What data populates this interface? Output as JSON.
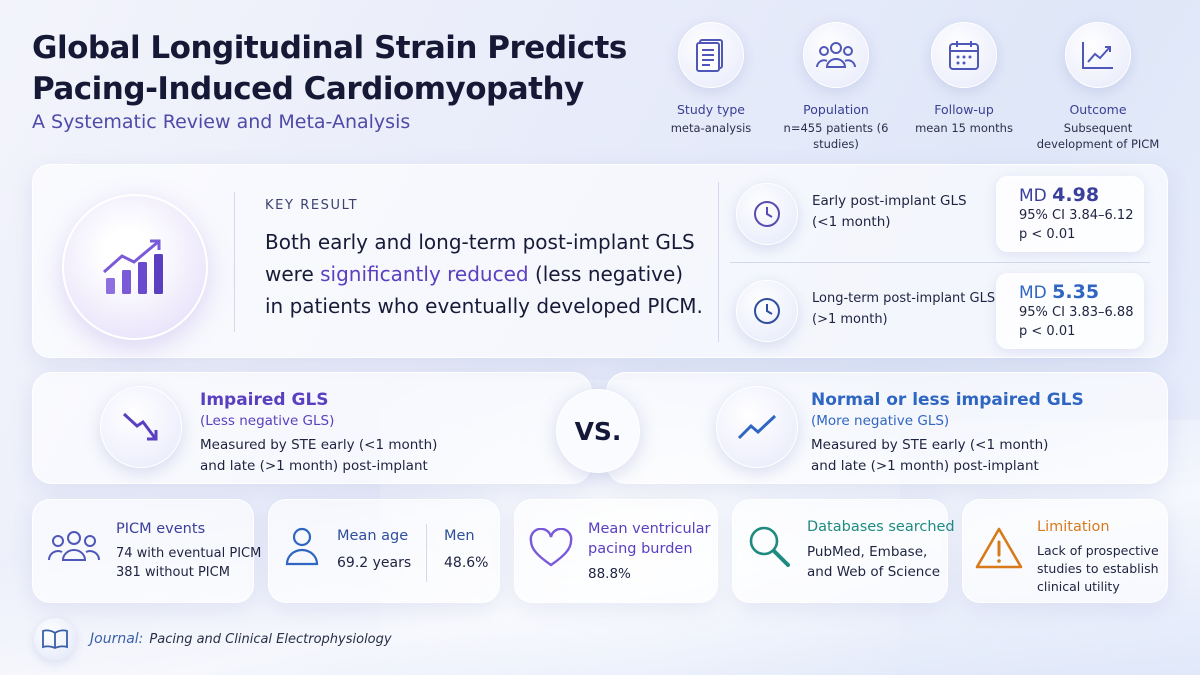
{
  "header": {
    "title_line1": "Global Longitudinal Strain Predicts",
    "title_line2": "Pacing-Induced Cardiomyopathy",
    "subtitle": "A Systematic Review and Meta-Analysis"
  },
  "meta": [
    {
      "icon": "document-icon",
      "label": "Study type",
      "value": "meta-analysis"
    },
    {
      "icon": "people-icon",
      "label": "Population",
      "value": "n=455 patients (6 studies)"
    },
    {
      "icon": "calendar-icon",
      "label": "Follow-up",
      "value": "mean 15 months"
    },
    {
      "icon": "trend-chart-icon",
      "label": "Outcome",
      "value": "Subsequent development of PICM"
    }
  ],
  "key_result": {
    "label": "KEY RESULT",
    "text_before": "Both early and long-term post-implant GLS were ",
    "text_highlight": "significantly reduced",
    "text_after": " (less negative) in patients who eventually developed PICM."
  },
  "gls": [
    {
      "name_line1": "Early post-implant GLS",
      "name_line2": "(<1 month)",
      "md_label": "MD",
      "md_value": "4.98",
      "ci": "95% CI 3.84–6.12",
      "p": "p < 0.01"
    },
    {
      "name_line1": "Long-term post-implant GLS",
      "name_line2": "(>1 month)",
      "md_label": "MD",
      "md_value": "5.35",
      "ci": "95% CI 3.83–6.88",
      "p": "p < 0.01"
    }
  ],
  "comparison": {
    "left": {
      "title": "Impaired GLS",
      "sub": "(Less negative GLS)",
      "desc_line1": "Measured by STE early (<1 month)",
      "desc_line2": "and late (>1 month) post-implant"
    },
    "vs": "VS.",
    "right": {
      "title": "Normal or less impaired GLS",
      "sub": "(More negative GLS)",
      "desc_line1": "Measured by STE early (<1 month)",
      "desc_line2": "and late (>1 month) post-implant"
    }
  },
  "bottom": {
    "picm": {
      "title": "PICM events",
      "line1": "74 with eventual PICM",
      "line2": "381 without PICM"
    },
    "age": {
      "title": "Mean age",
      "value": "69.2 years"
    },
    "men": {
      "title": "Men",
      "value": "48.6%"
    },
    "pacing": {
      "title_line1": "Mean ventricular",
      "title_line2": "pacing burden",
      "value": "88.8%"
    },
    "databases": {
      "title": "Databases searched",
      "line1": "PubMed, Embase,",
      "line2": "and Web of Science"
    },
    "limitation": {
      "title": "Limitation",
      "line1": "Lack of prospective",
      "line2": "studies to establish",
      "line3": "clinical utility"
    }
  },
  "journal": {
    "label": "Journal:",
    "value": "Pacing and Clinical Electrophysiology"
  },
  "colors": {
    "purple": "#5a3fc0",
    "blue": "#2f66c2",
    "teal": "#1f8a80",
    "orange": "#d87a1c",
    "navy": "#3b3f9c"
  }
}
